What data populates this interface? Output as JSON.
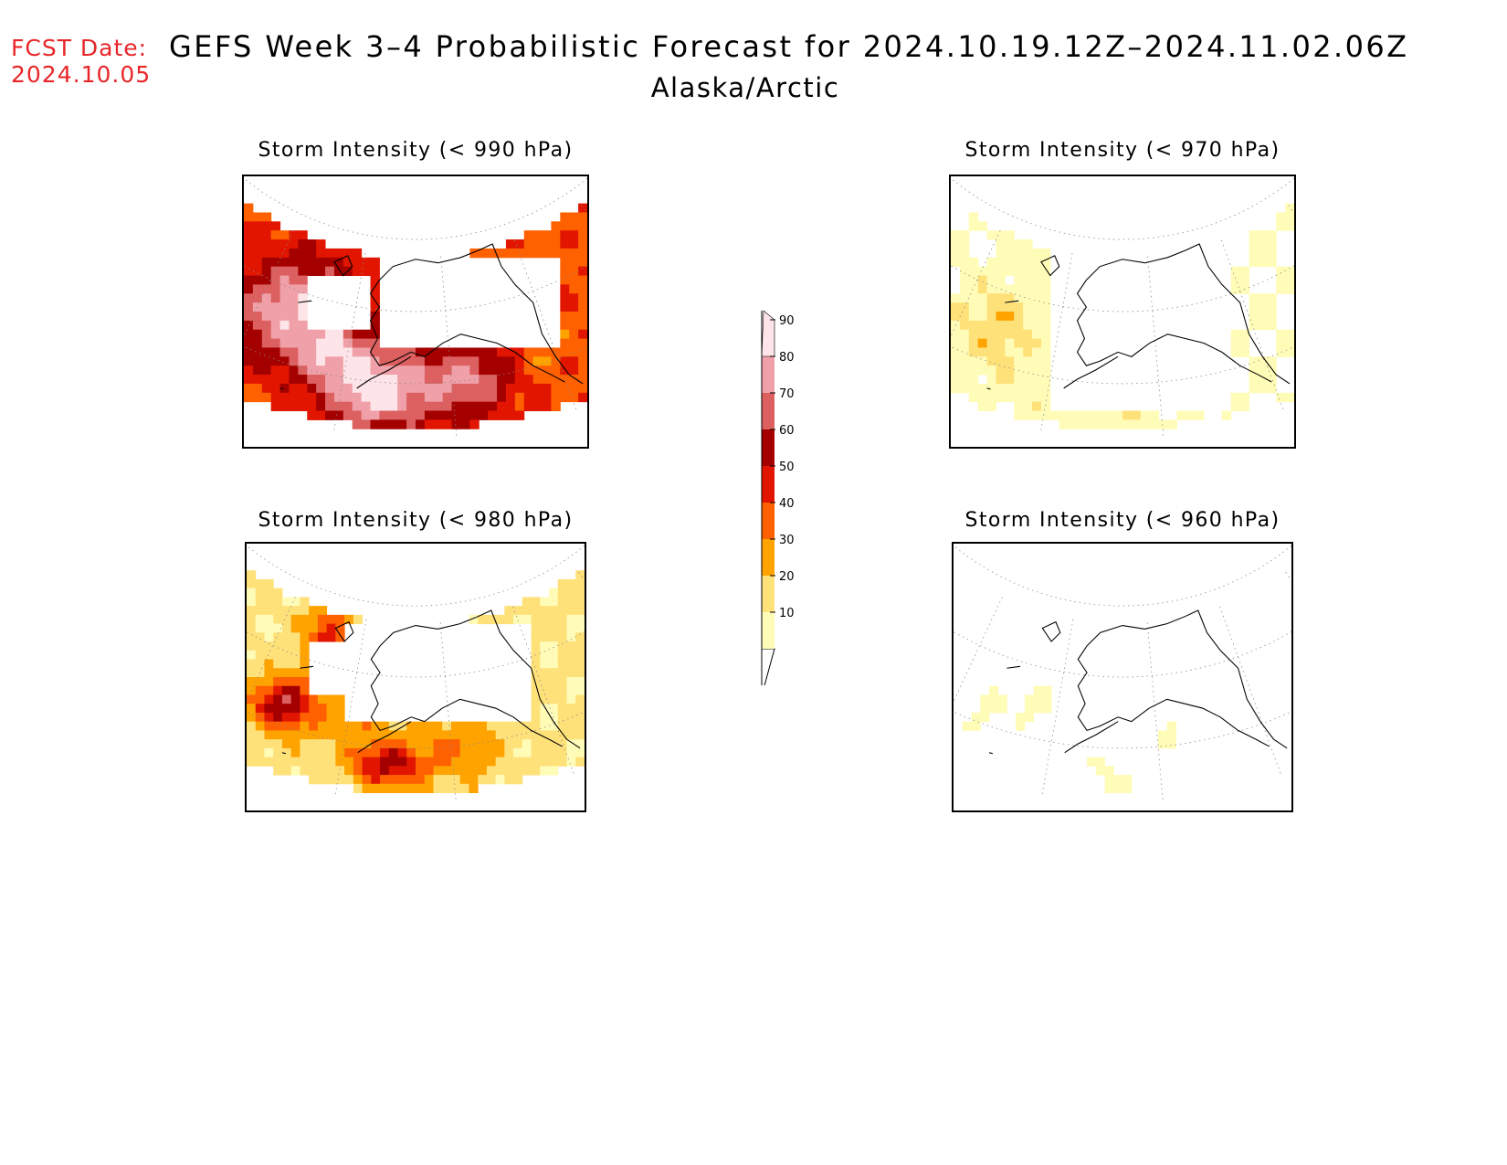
{
  "header": {
    "fcst_label": "FCST Date:",
    "fcst_date": "2024.10.05",
    "title": "GEFS Week 3–4 Probabilistic Forecast for 2024.10.19.12Z–2024.11.02.06Z",
    "region": "Alaska/Arctic"
  },
  "panels": [
    {
      "id": "p990",
      "title": "Storm Intensity (< 990 hPa)",
      "max_level": 90
    },
    {
      "id": "p970",
      "title": "Storm Intensity (< 970 hPa)",
      "max_level": 40
    },
    {
      "id": "p980",
      "title": "Storm Intensity (< 980 hPa)",
      "max_level": 80
    },
    {
      "id": "p960",
      "title": "Storm Intensity (< 960 hPa)",
      "max_level": 20
    }
  ],
  "colorbar": {
    "levels": [
      "10",
      "20",
      "30",
      "40",
      "50",
      "60",
      "70",
      "80",
      "90"
    ],
    "colors": [
      "#fffcb8",
      "#ffe17a",
      "#ffa300",
      "#ff6000",
      "#e21600",
      "#a50000",
      "#dc6060",
      "#f0a0a8",
      "#fde4e8"
    ]
  }
}
